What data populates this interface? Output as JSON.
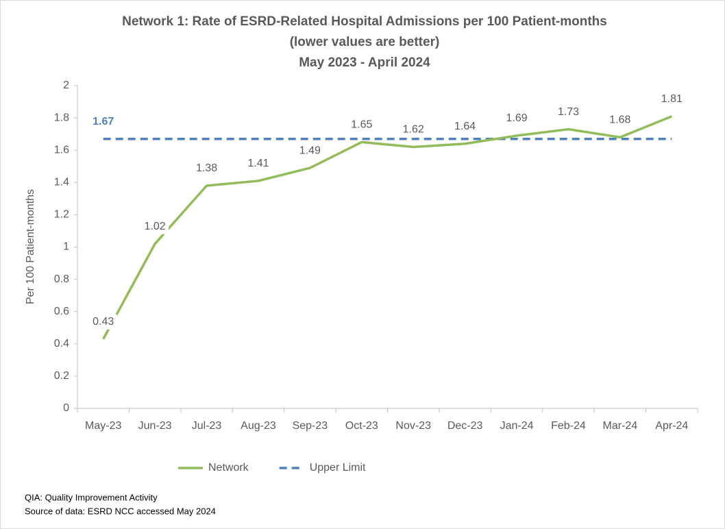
{
  "chart_data": {
    "type": "line",
    "title": [
      "Network 1: Rate of ESRD-Related Hospital Admissions per 100 Patient-months",
      "(lower values are better)",
      "May 2023 - April 2024"
    ],
    "y_label": "Per 100 Patient-months",
    "categories": [
      "May-23",
      "Jun-23",
      "Jul-23",
      "Aug-23",
      "Sep-23",
      "Oct-23",
      "Nov-23",
      "Dec-23",
      "Jan-24",
      "Feb-24",
      "Mar-24",
      "Apr-24"
    ],
    "series": [
      {
        "name": "Network",
        "color": "#92bb5a",
        "dash": false,
        "data_labels": "all",
        "values": [
          0.43,
          1.02,
          1.38,
          1.41,
          1.49,
          1.65,
          1.62,
          1.64,
          1.69,
          1.73,
          1.68,
          1.81
        ]
      },
      {
        "name": "Upper Limit",
        "color": "#4f81bd",
        "dash": true,
        "data_labels": "first",
        "values": [
          1.67,
          1.67,
          1.67,
          1.67,
          1.67,
          1.67,
          1.67,
          1.67,
          1.67,
          1.67,
          1.67,
          1.67
        ]
      }
    ],
    "ylim": [
      0,
      2
    ],
    "yticks": [
      0,
      0.2,
      0.4,
      0.6,
      0.8,
      1,
      1.2,
      1.4,
      1.6,
      1.8,
      2
    ],
    "grid": false,
    "legend": "bottom",
    "footnotes": [
      "QIA:  Quality Improvement Activity",
      "Source of data:  ESRD NCC accessed May 2024"
    ]
  }
}
